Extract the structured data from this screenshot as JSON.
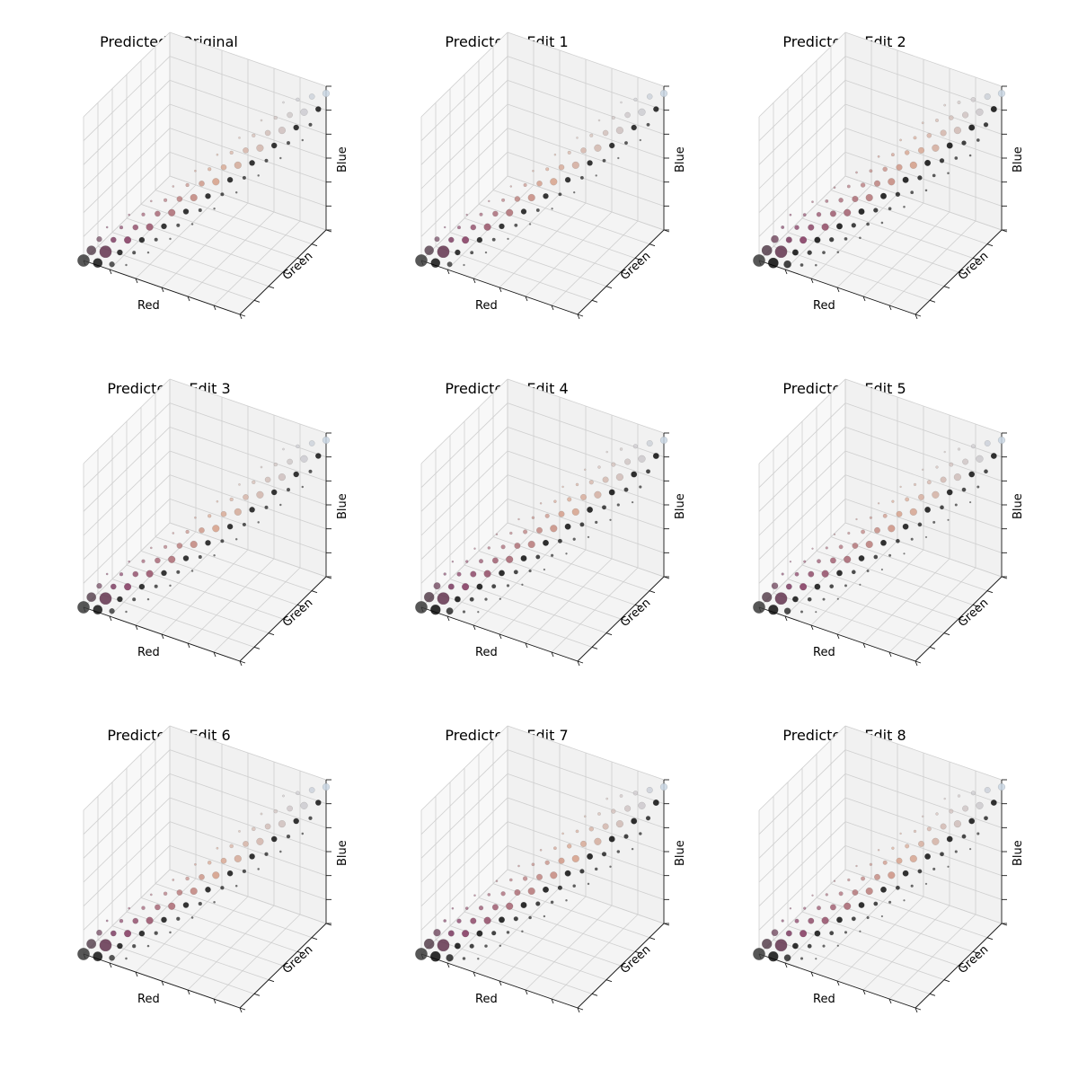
{
  "chart_data": [
    {
      "type": "scatter",
      "title": "Predicted - Original",
      "xlabel": "Red",
      "ylabel": "Green",
      "zlabel": "Blue",
      "axis_scale": "3d",
      "grid": true,
      "spread": 0.2,
      "cutoff": 0.55
    },
    {
      "type": "scatter",
      "title": "Predicted - Edit 1",
      "xlabel": "Red",
      "ylabel": "Green",
      "zlabel": "Blue",
      "axis_scale": "3d",
      "grid": true,
      "spread": 0.19,
      "cutoff": 0.53
    },
    {
      "type": "scatter",
      "title": "Predicted - Edit 2",
      "xlabel": "Red",
      "ylabel": "Green",
      "zlabel": "Blue",
      "axis_scale": "3d",
      "grid": true,
      "spread": 0.3,
      "cutoff": 0.65
    },
    {
      "type": "scatter",
      "title": "Predicted - Edit 3",
      "xlabel": "Red",
      "ylabel": "Green",
      "zlabel": "Blue",
      "axis_scale": "3d",
      "grid": true,
      "spread": 0.2,
      "cutoff": 0.55
    },
    {
      "type": "scatter",
      "title": "Predicted - Edit 4",
      "xlabel": "Red",
      "ylabel": "Green",
      "zlabel": "Blue",
      "axis_scale": "3d",
      "grid": true,
      "spread": 0.26,
      "cutoff": 0.62
    },
    {
      "type": "scatter",
      "title": "Predicted - Edit 5",
      "xlabel": "Red",
      "ylabel": "Green",
      "zlabel": "Blue",
      "axis_scale": "3d",
      "grid": true,
      "spread": 0.24,
      "cutoff": 0.6
    },
    {
      "type": "scatter",
      "title": "Predicted - Edit 6",
      "xlabel": "Red",
      "ylabel": "Green",
      "zlabel": "Blue",
      "axis_scale": "3d",
      "grid": true,
      "spread": 0.21,
      "cutoff": 0.56
    },
    {
      "type": "scatter",
      "title": "Predicted - Edit 7",
      "xlabel": "Red",
      "ylabel": "Green",
      "zlabel": "Blue",
      "axis_scale": "3d",
      "grid": true,
      "spread": 0.28,
      "cutoff": 0.64
    },
    {
      "type": "scatter",
      "title": "Predicted - Edit 8",
      "xlabel": "Red",
      "ylabel": "Green",
      "zlabel": "Blue",
      "axis_scale": "3d",
      "grid": true,
      "spread": 0.25,
      "cutoff": 0.6
    }
  ],
  "colors": {
    "pane_left": "#f8f8f8",
    "pane_back": "#f1f1f1",
    "pane_floor": "#f4f4f4",
    "grid": "#cfcfcf",
    "axis_line": "#1a1a1a",
    "dark_point": "#3a3a3a",
    "purple_point": "#7a2e5a",
    "peach_point": "#d7a088",
    "light_point": "#c9d6e3"
  }
}
